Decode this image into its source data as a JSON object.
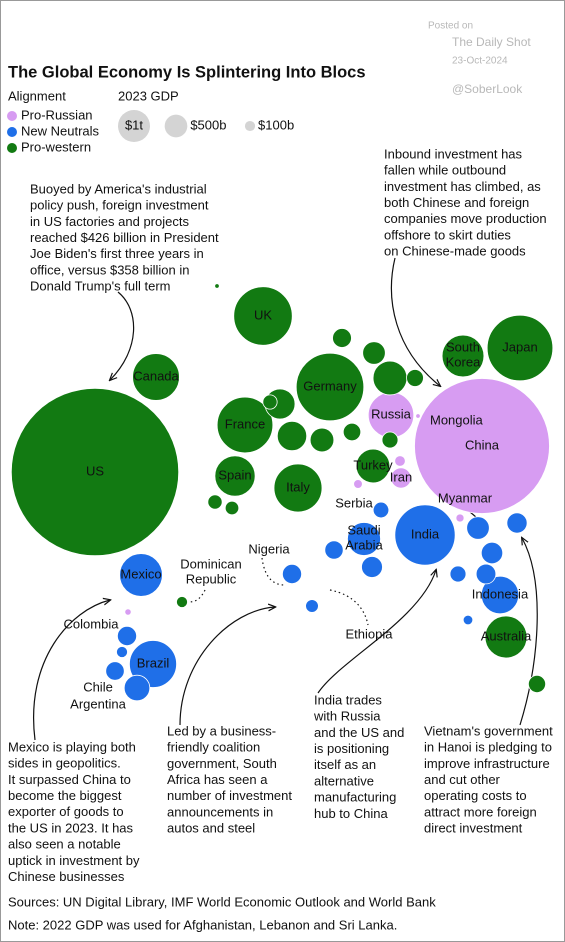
{
  "watermark": {
    "posted": "Posted on",
    "source": "The Daily Shot",
    "date": "23-Oct-2024",
    "handle": "@SoberLook"
  },
  "chart_data": {
    "type": "bubble",
    "title": "The Global Economy Is Splintering Into Blocs",
    "legend_title": "Alignment",
    "size_legend_title": "2023 GDP",
    "size_legend": [
      {
        "value": 1000,
        "label": "$1t"
      },
      {
        "value": 500,
        "label": "$500b"
      },
      {
        "value": 100,
        "label": "$100b"
      }
    ],
    "series": [
      {
        "name": "Pro-Russian",
        "color": "#d79cf2",
        "labels": [
          "China",
          "Russia",
          "Iran",
          "Mongolia",
          "Myanmar",
          "Serbia",
          null,
          null
        ],
        "values": [
          17790,
          2020,
          400,
          20,
          65,
          75,
          110,
          40
        ]
      },
      {
        "name": "New Neutrals",
        "color": "#1f6fe8",
        "labels": [
          "India",
          "Brazil",
          "Mexico",
          "Indonesia",
          "Saudi Arabia",
          "Argentina",
          "Colombia",
          "Chile",
          "Nigeria",
          "Ethiopia",
          null,
          null,
          null,
          null,
          null,
          null,
          null,
          null,
          null,
          null
        ],
        "values": [
          3550,
          2170,
          1790,
          1370,
          1070,
          640,
          360,
          335,
          360,
          160,
          500,
          450,
          400,
          380,
          430,
          330,
          240,
          250,
          90,
          120
        ]
      },
      {
        "name": "Pro-western",
        "color": "#127a12",
        "labels": [
          "US",
          "Canada",
          "UK",
          "Germany",
          "France",
          "Italy",
          "Spain",
          "Japan",
          "South Korea",
          "Australia",
          "Turkey",
          "Dominican Republic",
          null,
          null,
          null,
          null,
          null,
          null,
          null,
          null,
          null,
          null,
          null,
          null,
          null,
          null
        ],
        "values": [
          27360,
          2140,
          3340,
          4460,
          3030,
          2250,
          1580,
          4210,
          1710,
          1720,
          1110,
          120,
          1120,
          845,
          880,
          500,
          550,
          300,
          200,
          350,
          280,
          200,
          290,
          250,
          180,
          20
        ]
      }
    ],
    "annotations": [
      {
        "lines": [
          "Buoyed by America's industrial",
          "policy push, foreign investment",
          "in US factories and projects",
          "reached $426 billion in President",
          "Joe Biden's first three years in",
          "office, versus $358 billion in",
          "Donald Trump's full term"
        ]
      },
      {
        "lines": [
          "Inbound investment has",
          "fallen while outbound",
          "investment has climbed, as",
          "both Chinese and foreign",
          "companies move production",
          "offshore to skirt duties",
          "on Chinese-made goods"
        ]
      },
      {
        "lines": [
          "Mexico is playing both",
          "sides in geopolitics.",
          "It surpassed China to",
          "become the biggest",
          "exporter of goods to",
          "the US in 2023. It has",
          "also seen a notable",
          "uptick in investment by",
          "Chinese businesses"
        ]
      },
      {
        "lines": [
          "Led by a business-",
          "friendly coalition",
          "government, South",
          "Africa has seen a",
          "number of investment",
          "announcements in",
          "autos and steel"
        ]
      },
      {
        "lines": [
          "India trades",
          "with Russia",
          "and the US and",
          "is positioning",
          "itself as an",
          "alternative",
          "manufacturing",
          "hub to China"
        ]
      },
      {
        "lines": [
          "Vietnam's government",
          "in Hanoi is pledging to",
          "improve infrastructure",
          "and cut other",
          "operating costs to",
          "attract more foreign",
          "direct investment"
        ]
      }
    ],
    "sources": "Sources: UN Digital Library, IMF World Economic Outlook and World Bank",
    "note": "Note: 2022 GDP was used for Afghanistan, Lebanon and Sri Lanka."
  }
}
